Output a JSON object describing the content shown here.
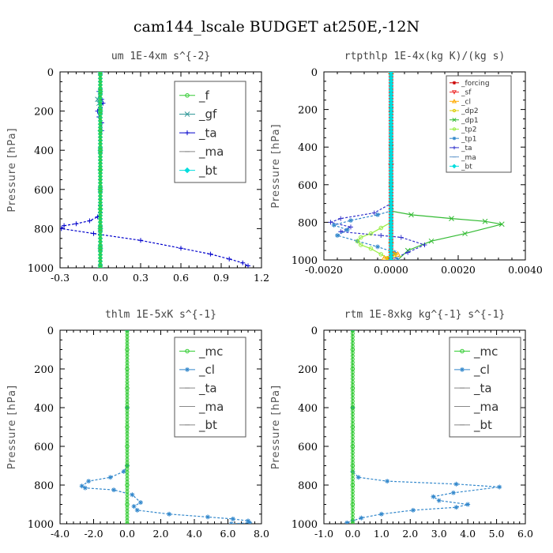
{
  "title": "cam144_lscale  BUDGET at250E,-12N",
  "chart_data": [
    {
      "type": "line",
      "title": "um   1E-4xm s^{-2}",
      "ylabel": "Pressure [hPa]",
      "xlim": [
        -0.3,
        1.2
      ],
      "ylim": [
        1000,
        0
      ],
      "xticks": [
        -0.3,
        0.0,
        0.3,
        0.6,
        0.9,
        1.2
      ],
      "xtick_labels": [
        "-0.3",
        "0.0",
        "0.3",
        "0.6",
        "0.9",
        "1.2"
      ],
      "yticks": [
        0,
        200,
        400,
        600,
        800,
        1000
      ],
      "ytick_labels": [
        "0",
        "200",
        "400",
        "600",
        "800",
        "1000"
      ],
      "legend": "top-right",
      "legend_labels": [
        "_f",
        "_gf",
        "_ta",
        "_ma",
        "_bt"
      ],
      "series": [
        {
          "name": "_ta",
          "color": "#0000cc",
          "marker": "plus",
          "dash": true,
          "x": [
            0.01,
            0.0,
            -0.01,
            0.01,
            0.02,
            0.0,
            -0.02,
            -0.01,
            0.01,
            0.01,
            0.0,
            0.0,
            0.0,
            0.0,
            0.0,
            0.0,
            0.0,
            0.0,
            0.0,
            0.0,
            -0.02,
            -0.08,
            -0.18,
            -0.27,
            -0.29,
            -0.05,
            0.3,
            0.6,
            0.82,
            0.96,
            1.06,
            1.1
          ],
          "y": [
            0,
            50,
            100,
            140,
            160,
            180,
            200,
            230,
            260,
            300,
            350,
            400,
            450,
            500,
            550,
            600,
            650,
            680,
            700,
            720,
            740,
            760,
            775,
            785,
            800,
            825,
            860,
            900,
            930,
            955,
            975,
            990
          ]
        },
        {
          "name": "_gf",
          "color": "#339999",
          "marker": "x",
          "dash": false,
          "x": [
            0.0,
            0.0,
            -0.02,
            -0.01,
            0.0,
            0.0,
            0.0,
            0.0,
            0.0,
            0.0
          ],
          "y": [
            0,
            100,
            140,
            160,
            200,
            400,
            600,
            800,
            900,
            1000
          ]
        },
        {
          "name": "_bt",
          "color": "#00dddd",
          "marker": "diamond",
          "dash": false,
          "x": [
            0.0,
            0.0,
            0.0,
            0.0,
            0.0,
            0.0,
            0.0,
            0.0,
            0.0,
            0.0,
            0.0
          ],
          "y": [
            0,
            100,
            200,
            300,
            400,
            500,
            600,
            700,
            800,
            900,
            1000
          ]
        },
        {
          "name": "_f",
          "color": "#33cc33",
          "marker": "circle",
          "dash": false,
          "x": [
            0.0,
            0.0,
            0.0,
            0.0,
            0.0,
            0.0,
            0.0,
            0.0,
            0.0,
            0.0,
            0.0
          ],
          "y": [
            0,
            100,
            200,
            300,
            400,
            500,
            600,
            700,
            800,
            900,
            1000
          ]
        }
      ]
    },
    {
      "type": "line",
      "title": "rtpthlp   1E-4x(kg K)/(kg s)",
      "ylabel": "Pressure [hPa]",
      "xlim": [
        -0.002,
        0.004
      ],
      "ylim": [
        1000,
        0
      ],
      "xticks": [
        -0.002,
        0.0,
        0.002,
        0.004
      ],
      "xtick_labels": [
        "-0.0020",
        "0.0000",
        "0.0020",
        "0.0040"
      ],
      "yticks": [
        0,
        200,
        400,
        600,
        800,
        1000
      ],
      "ytick_labels": [
        "0",
        "200",
        "400",
        "600",
        "800",
        "1000"
      ],
      "legend": "top-right",
      "legend_labels": [
        "_forcing",
        "_sf",
        "_cl",
        "_dp2",
        "_dp1",
        "_tp2",
        "_tp1",
        "_ta",
        "_ma",
        "_bt"
      ],
      "series": [
        {
          "name": "_dp1",
          "color": "#33bb33",
          "marker": "x",
          "dash": false,
          "x": [
            0.0,
            0.0,
            0.0,
            0.0,
            0.0,
            0.0,
            0.0,
            0.0006,
            0.0018,
            0.0028,
            0.0033,
            0.0022,
            0.0012,
            0.0005,
            0.0002
          ],
          "y": [
            0,
            200,
            400,
            600,
            700,
            720,
            740,
            760,
            780,
            795,
            810,
            860,
            900,
            950,
            1000
          ]
        },
        {
          "name": "_ta",
          "color": "#3333cc",
          "marker": "plus",
          "dash": true,
          "x": [
            0.0,
            0.0,
            -0.0005,
            -0.0015,
            -0.0018,
            -0.0012,
            -0.0015,
            -0.0003,
            0.0003,
            0.001,
            0.0005,
            0.0
          ],
          "y": [
            0,
            700,
            750,
            780,
            800,
            825,
            850,
            870,
            880,
            920,
            960,
            1000
          ]
        },
        {
          "name": "_tp1",
          "color": "#3388cc",
          "marker": "star",
          "dash": true,
          "x": [
            0.0,
            0.0,
            -0.0004,
            -0.0012,
            -0.0017,
            -0.0013,
            -0.0016,
            -0.001,
            -0.0004,
            0.0001,
            0.0002
          ],
          "y": [
            0,
            740,
            760,
            790,
            815,
            840,
            870,
            900,
            930,
            960,
            1000
          ]
        },
        {
          "name": "_tp2",
          "color": "#99ee44",
          "marker": "circle",
          "dash": false,
          "x": [
            0.0,
            0.0,
            -0.0003,
            -0.0006,
            -0.0009,
            -0.001,
            -0.0009,
            -0.0006,
            -0.0003,
            0.0
          ],
          "y": [
            0,
            800,
            830,
            860,
            880,
            900,
            920,
            940,
            970,
            1000
          ]
        },
        {
          "name": "_ma",
          "color": "#6699cc",
          "marker": "dash",
          "dash": false,
          "x": [
            0.0,
            0.0,
            0.0
          ],
          "y": [
            0,
            500,
            1000
          ]
        },
        {
          "name": "_cl",
          "color": "#ffaa00",
          "marker": "triangle",
          "dash": false,
          "x": [
            0.0,
            0.0,
            0.0,
            0.0002,
            -0.0002,
            0.0
          ],
          "y": [
            0,
            900,
            950,
            970,
            990,
            1000
          ]
        },
        {
          "name": "_dp2",
          "color": "#ddcc00",
          "marker": "circle",
          "dash": false,
          "x": [
            0.0,
            0.0,
            0.0001,
            -0.0001,
            0.0
          ],
          "y": [
            0,
            950,
            975,
            990,
            1000
          ]
        },
        {
          "name": "_sf",
          "color": "#ee3333",
          "marker": "triangle-down",
          "dash": false,
          "x": [
            0.0,
            0.0,
            0.0
          ],
          "y": [
            0,
            500,
            1000
          ]
        },
        {
          "name": "_forcing",
          "color": "#cc0000",
          "marker": "star",
          "dash": false,
          "x": [
            0.0,
            0.0,
            0.0,
            0.0,
            0.0,
            0.0,
            0.0,
            0.0,
            0.0,
            0.0,
            0.0
          ],
          "y": [
            0,
            100,
            200,
            300,
            400,
            500,
            600,
            700,
            800,
            900,
            1000
          ]
        },
        {
          "name": "_bt",
          "color": "#00dddd",
          "marker": "diamond",
          "dash": false,
          "x": [
            0.0,
            0.0
          ],
          "y": [
            0,
            1000
          ]
        }
      ]
    },
    {
      "type": "line",
      "title": "thlm   1E-5xK s^{-1}",
      "ylabel": "Pressure [hPa]",
      "xlim": [
        -4.0,
        8.0
      ],
      "ylim": [
        1000,
        0
      ],
      "xticks": [
        -4.0,
        -2.0,
        0.0,
        2.0,
        4.0,
        6.0,
        8.0
      ],
      "xtick_labels": [
        "-4.0",
        "-2.0",
        "0.0",
        "2.0",
        "4.0",
        "6.0",
        "8.0"
      ],
      "yticks": [
        0,
        200,
        400,
        600,
        800,
        1000
      ],
      "ytick_labels": [
        "0",
        "200",
        "400",
        "600",
        "800",
        "1000"
      ],
      "legend": "top-right",
      "legend_labels": [
        "_mc",
        "_cl",
        "_ta",
        "_ma",
        "_bt"
      ],
      "series": [
        {
          "name": "_cl",
          "color": "#3388cc",
          "marker": "star",
          "dash": true,
          "x": [
            0.0,
            0.0,
            0.0,
            -0.2,
            -1.0,
            -2.3,
            -2.7,
            -2.5,
            -0.8,
            0.3,
            0.8,
            0.4,
            0.6,
            2.5,
            4.8,
            6.3,
            7.2,
            7.3,
            6.2
          ],
          "y": [
            0,
            400,
            700,
            730,
            760,
            780,
            805,
            815,
            825,
            850,
            890,
            910,
            930,
            950,
            965,
            975,
            985,
            995,
            1000
          ]
        },
        {
          "name": "_mc",
          "color": "#33cc33",
          "marker": "circle",
          "dash": false,
          "x": [
            0.0,
            0.0,
            0.0,
            0.0,
            0.0,
            0.0,
            0.0,
            0.0,
            0.0,
            0.0,
            0.0
          ],
          "y": [
            0,
            100,
            200,
            300,
            400,
            500,
            600,
            700,
            800,
            900,
            1000
          ]
        }
      ]
    },
    {
      "type": "line",
      "title": "rtm   1E-8xkg kg^{-1} s^{-1}",
      "ylabel": "Pressure [hPa]",
      "xlim": [
        -1.0,
        6.0
      ],
      "ylim": [
        1000,
        0
      ],
      "xticks": [
        -1.0,
        0.0,
        1.0,
        2.0,
        3.0,
        4.0,
        5.0,
        6.0
      ],
      "xtick_labels": [
        "-1.0",
        "0.0",
        "1.0",
        "2.0",
        "3.0",
        "4.0",
        "5.0",
        "6.0"
      ],
      "yticks": [
        0,
        200,
        400,
        600,
        800,
        1000
      ],
      "ytick_labels": [
        "0",
        "200",
        "400",
        "600",
        "800",
        "1000"
      ],
      "legend": "top-right",
      "legend_labels": [
        "_mc",
        "_cl",
        "_ta",
        "_ma",
        "_bt"
      ],
      "series": [
        {
          "name": "_cl",
          "color": "#3388cc",
          "marker": "star",
          "dash": true,
          "x": [
            0.0,
            0.0,
            0.0,
            0.2,
            1.2,
            3.6,
            5.1,
            3.5,
            2.8,
            3.0,
            4.0,
            3.6,
            2.1,
            1.0,
            0.3,
            0.0,
            -0.2
          ],
          "y": [
            0,
            400,
            730,
            760,
            780,
            795,
            810,
            840,
            860,
            880,
            900,
            915,
            930,
            950,
            970,
            985,
            995
          ]
        },
        {
          "name": "_mc",
          "color": "#33cc33",
          "marker": "circle",
          "dash": false,
          "x": [
            0.0,
            0.0,
            0.0,
            0.0,
            0.0,
            0.0,
            0.0,
            0.0,
            0.0,
            0.0,
            0.0
          ],
          "y": [
            0,
            100,
            200,
            300,
            400,
            500,
            600,
            700,
            800,
            900,
            1000
          ]
        }
      ]
    }
  ]
}
